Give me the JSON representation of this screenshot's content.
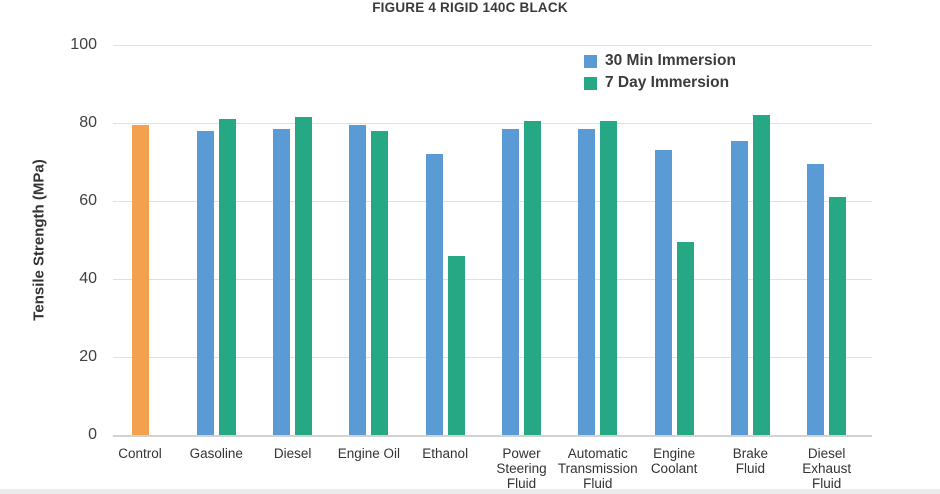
{
  "chart_data": {
    "type": "bar",
    "title": "FIGURE 4 RIGID 140C BLACK",
    "ylabel": "Tensile Strength (MPa)",
    "ylim": [
      0,
      100
    ],
    "yticks": [
      0,
      20,
      40,
      60,
      80,
      100
    ],
    "grid": true,
    "legend_position": "top-right-inside",
    "categories": [
      "Control",
      "Gasoline",
      "Diesel",
      "Engine Oil",
      "Ethanol",
      "Power Steering Fluid",
      "Automatic Transmission Fluid",
      "Engine Coolant",
      "Brake Fluid",
      "Diesel Exhaust Fluid"
    ],
    "category_display": [
      "Control",
      "Gasoline",
      "Diesel",
      "Engine Oil",
      "Ethanol",
      "Power\nSteering\nFluid",
      "Automatic\nTransmission\nFluid",
      "Engine\nCoolant",
      "Brake\nFluid",
      "Diesel\nExhaust\nFluid"
    ],
    "series": [
      {
        "name": "Control",
        "color": "#F3A14E",
        "in_legend": false,
        "values": [
          79.5,
          null,
          null,
          null,
          null,
          null,
          null,
          null,
          null,
          null
        ]
      },
      {
        "name": "30 Min Immersion",
        "color": "#5B9BD5",
        "in_legend": true,
        "values": [
          null,
          78,
          78.5,
          79.5,
          72,
          78.5,
          78.5,
          73,
          75.5,
          69.5
        ]
      },
      {
        "name": "7 Day Immersion",
        "color": "#26A884",
        "in_legend": true,
        "values": [
          null,
          81,
          81.5,
          78,
          46,
          80.5,
          80.5,
          49.5,
          82,
          61
        ]
      }
    ]
  },
  "colors": {
    "control_bar": "#F3A14E",
    "immersion_30min_bar": "#5B9BD5",
    "immersion_7day_bar": "#26A884",
    "gridline": "#e0e0e0",
    "axis_line": "#d2d2d2",
    "text": "#333333"
  }
}
